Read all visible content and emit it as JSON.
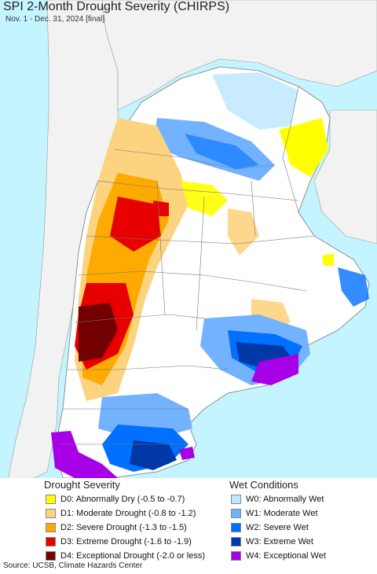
{
  "title": "SPI 2-Month Drought Severity (CHIRPS)",
  "subtitle": "Nov. 1 - Dec. 31, 2024 [final]",
  "legend": {
    "drought_title": "Drought Severity",
    "wet_title": "Wet Conditions",
    "drought_items": [
      {
        "label": "D0: Abnormally Dry (-0.5 to -0.7)",
        "color": "#ffff00"
      },
      {
        "label": "D1: Moderate Drought (-0.8 to -1.2)",
        "color": "#fcd37f"
      },
      {
        "label": "D2: Severe Drought (-1.3 to -1.5)",
        "color": "#ffaa00"
      },
      {
        "label": "D3: Extreme Drought (-1.6 to -1.9)",
        "color": "#e60000"
      },
      {
        "label": "D4: Exceptional Drought (-2.0 or less)",
        "color": "#730000"
      }
    ],
    "wet_items": [
      {
        "label": "W0: Abnormally Wet",
        "color": "#bee8ff"
      },
      {
        "label": "W1: Moderate Wet",
        "color": "#73b2ff"
      },
      {
        "label": "W2: Severe Wet",
        "color": "#0070ff"
      },
      {
        "label": "W3: Extreme Wet",
        "color": "#0038a8"
      },
      {
        "label": "W4: Exceptional Wet",
        "color": "#a800e6"
      }
    ]
  },
  "source": "Source: UCSB, Climate Hazards Center",
  "map_colors": {
    "ocean": "#c4f4ff",
    "land_outside": "#f2f2f2",
    "land_normal": "#ffffff",
    "border": "#777777"
  }
}
